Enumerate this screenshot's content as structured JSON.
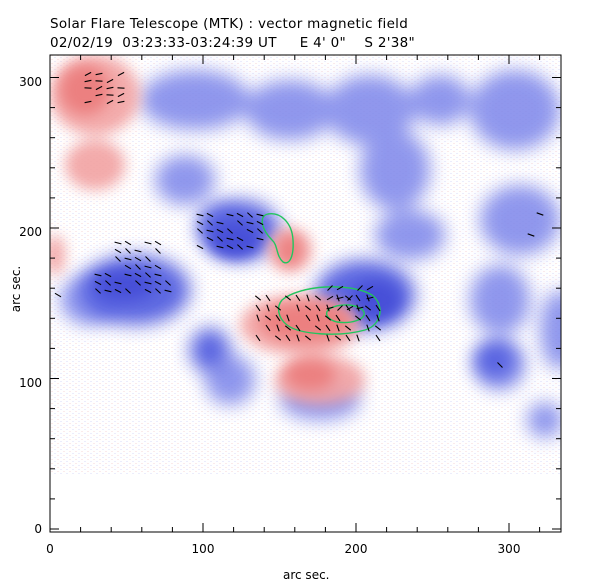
{
  "header": {
    "title": "Solar Flare Telescope (MTK) : vector magnetic field",
    "subtitle": "02/02/19  03:23:33-03:24:39 UT     E 4' 0\"    S 2'38\""
  },
  "axes": {
    "xlabel": "arc sec.",
    "ylabel": "arc sec.",
    "x_ticks": [
      "0",
      "100",
      "200",
      "300"
    ],
    "y_ticks": [
      "0",
      "100",
      "200",
      "300"
    ],
    "xlim": [
      0,
      340
    ],
    "ylim": [
      -2,
      312
    ]
  },
  "colors": {
    "positive_polarity": "#f08a8a",
    "negative_polarity": "#6d78e6",
    "contour": "#22c55e",
    "vectors": "#000000"
  }
}
